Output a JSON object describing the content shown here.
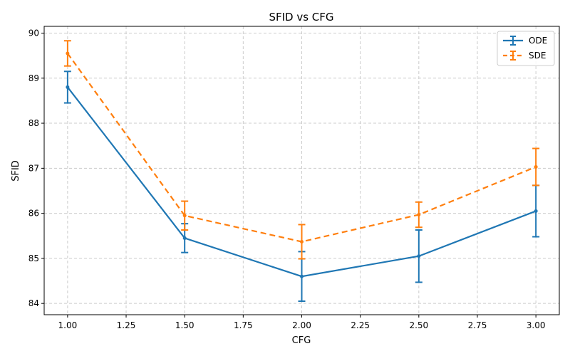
{
  "chart_data": {
    "type": "line",
    "title": "SFID vs CFG",
    "xlabel": "CFG",
    "ylabel": "SFID",
    "x": [
      1.0,
      1.5,
      2.0,
      2.5,
      3.0
    ],
    "xlim": [
      0.9,
      3.1
    ],
    "ylim": [
      83.75,
      90.15
    ],
    "x_ticks": [
      "1.00",
      "1.25",
      "1.50",
      "1.75",
      "2.00",
      "2.25",
      "2.50",
      "2.75",
      "3.00"
    ],
    "y_ticks": [
      "84",
      "85",
      "86",
      "87",
      "88",
      "89",
      "90"
    ],
    "grid": true,
    "legend_position": "top-right",
    "series": [
      {
        "name": "ODE",
        "color": "#1f77b4",
        "line_style": "solid",
        "values": [
          88.8,
          85.45,
          84.6,
          85.05,
          86.05
        ],
        "errors": [
          0.35,
          0.32,
          0.55,
          0.58,
          0.57
        ]
      },
      {
        "name": "SDE",
        "color": "#ff7f0e",
        "line_style": "dashed",
        "values": [
          89.55,
          85.95,
          85.37,
          85.97,
          87.03
        ],
        "errors": [
          0.28,
          0.32,
          0.38,
          0.28,
          0.41
        ]
      }
    ]
  }
}
